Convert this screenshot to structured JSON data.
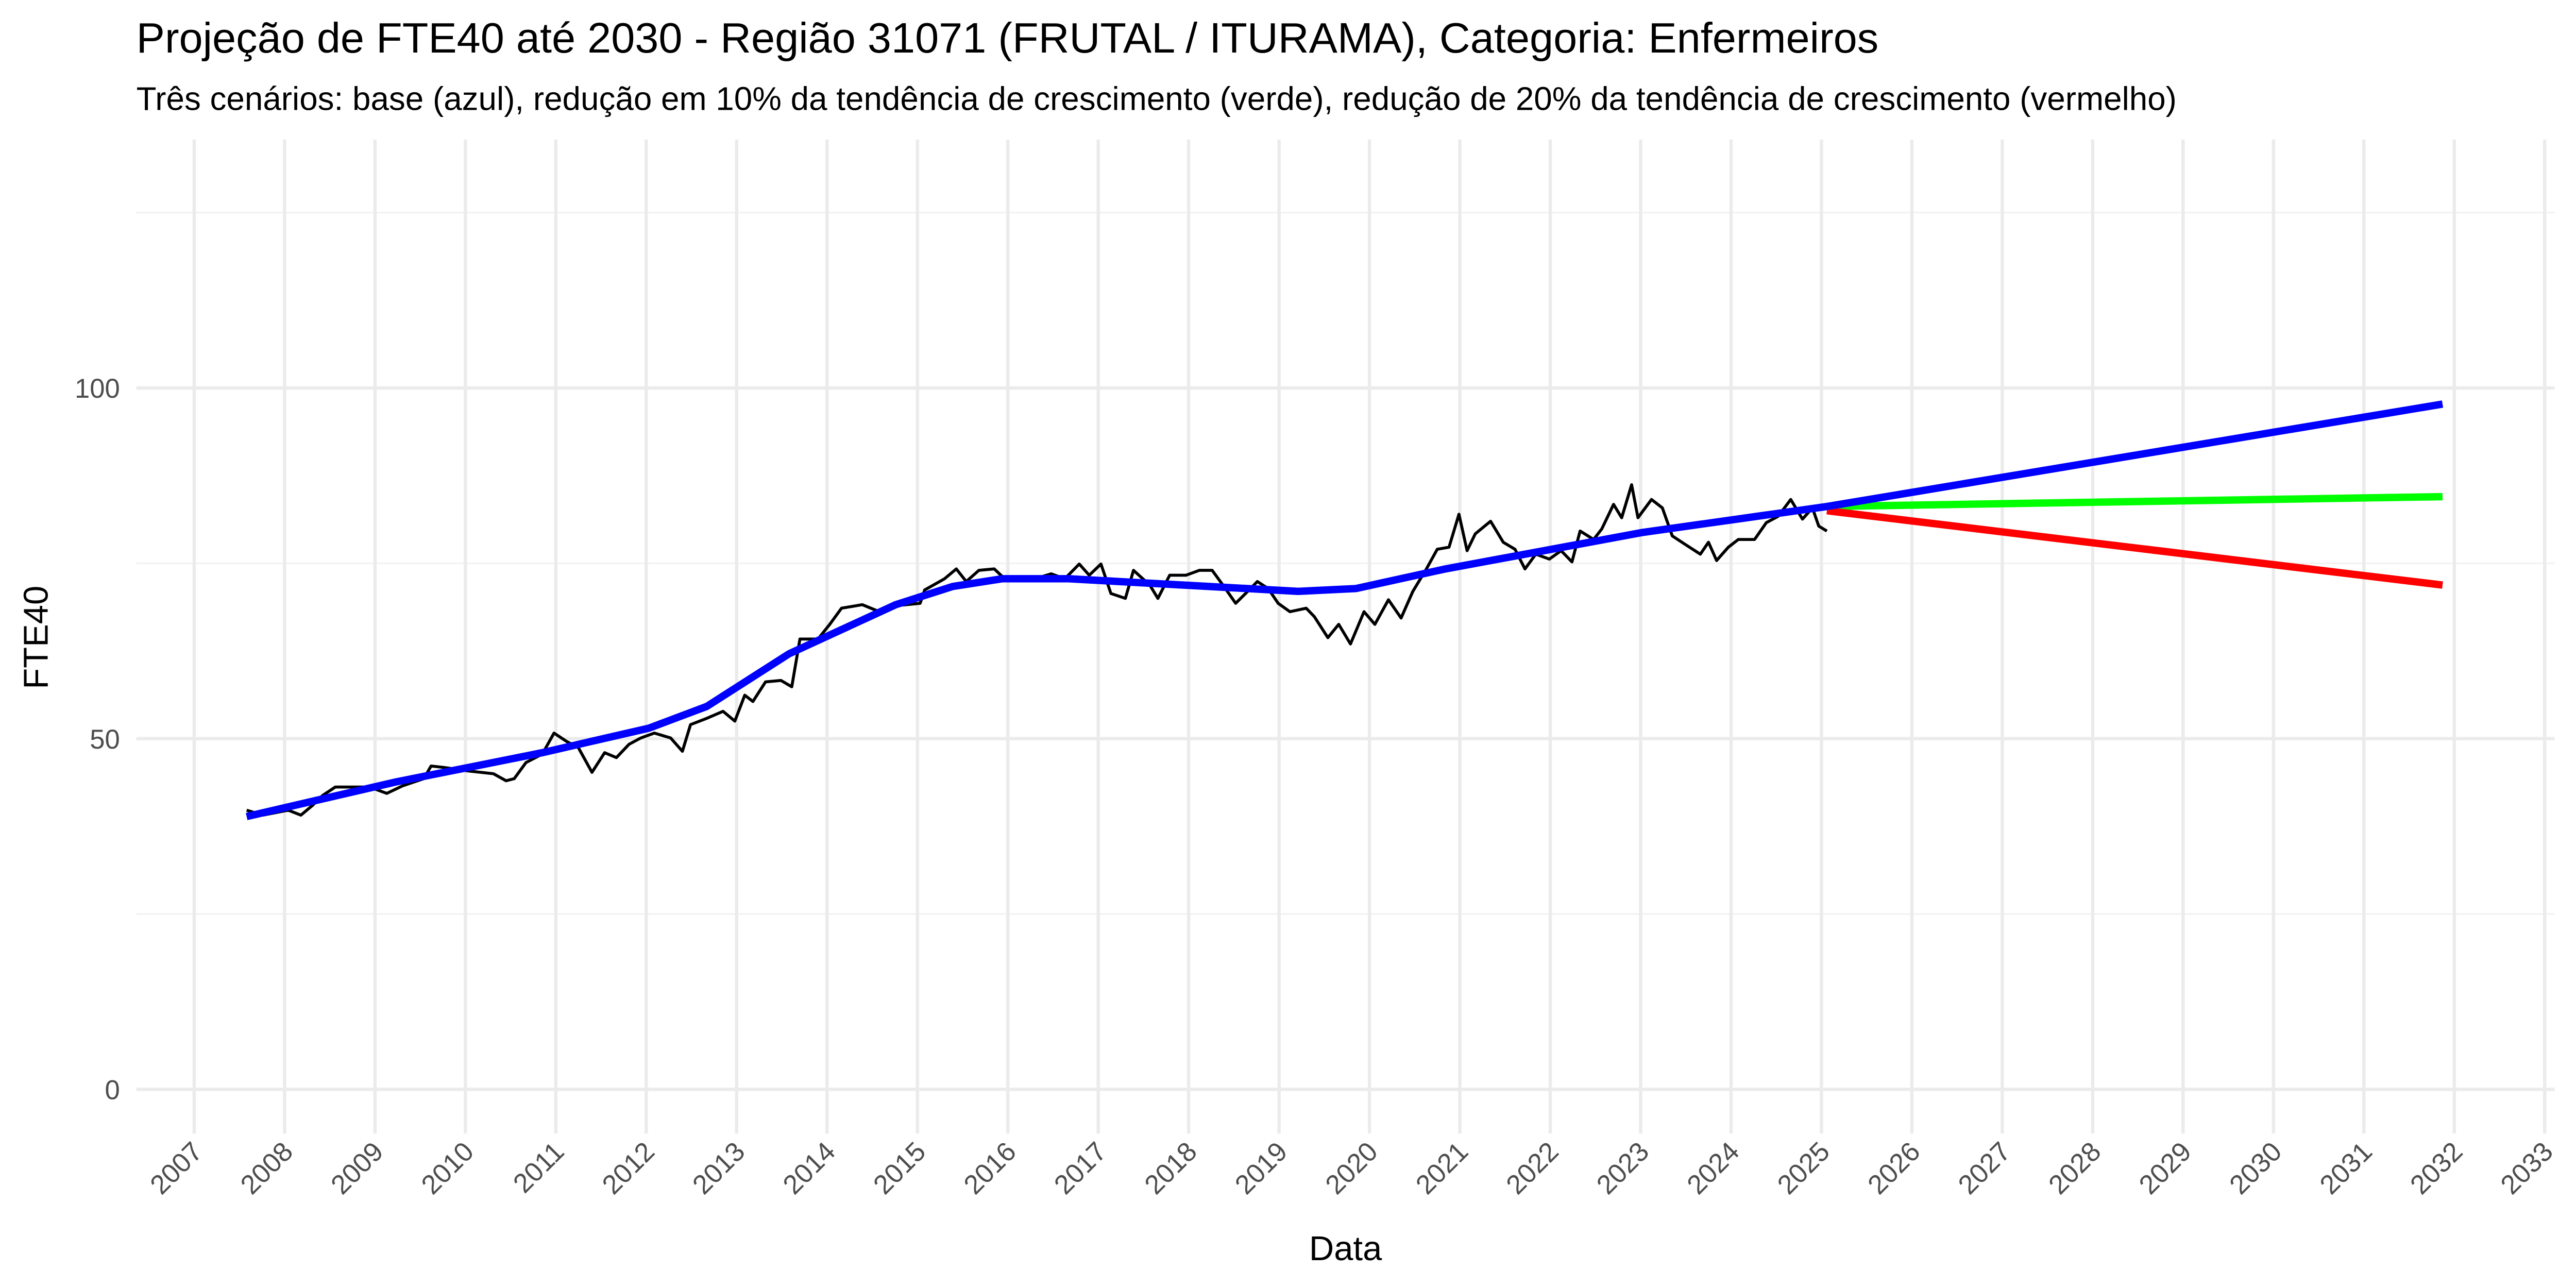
{
  "chart_data": {
    "type": "line",
    "title": "Projeção de FTE40 até 2030 - Região 31071 (FRUTAL / ITURAMA), Categoria: Enfermeiros",
    "subtitle": "Três cenários: base (azul), redução em 10% da tendência de crescimento (verde), redução de 20% da tendência de crescimento (vermelho)",
    "x_label": "Data",
    "y_label": "FTE40",
    "xlim": [
      2006.36,
      2033.11
    ],
    "xticks": [
      2007,
      2008,
      2009,
      2010,
      2011,
      2012,
      2013,
      2014,
      2015,
      2016,
      2017,
      2018,
      2019,
      2020,
      2021,
      2022,
      2023,
      2024,
      2025,
      2026,
      2027,
      2028,
      2029,
      2030,
      2031,
      2032,
      2033
    ],
    "ylim": [
      -6.3,
      135.4
    ],
    "yticks": [
      0,
      50,
      100
    ],
    "yminor_ticks": [
      25,
      75,
      125
    ],
    "grid": true,
    "series": [
      {
        "color": "#000000",
        "line_width": 1.8,
        "x": [
          2007.58,
          2007.76,
          2008.04,
          2008.18,
          2008.31,
          2008.42,
          2008.56,
          2008.94,
          2009.13,
          2009.31,
          2009.54,
          2009.62,
          2009.76,
          2010.03,
          2010.31,
          2010.45,
          2010.54,
          2010.67,
          2010.85,
          2010.98,
          2011.12,
          2011.25,
          2011.4,
          2011.54,
          2011.67,
          2011.81,
          2011.94,
          2012.09,
          2012.27,
          2012.4,
          2012.49,
          2012.67,
          2012.85,
          2012.98,
          2013.09,
          2013.18,
          2013.32,
          2013.49,
          2013.61,
          2013.7,
          2013.9,
          2014.03,
          2014.16,
          2014.39,
          2014.58,
          2014.72,
          2015.03,
          2015.08,
          2015.3,
          2015.43,
          2015.54,
          2015.68,
          2015.85,
          2015.94,
          2016.12,
          2016.3,
          2016.48,
          2016.63,
          2016.79,
          2016.9,
          2017.03,
          2017.14,
          2017.3,
          2017.39,
          2017.57,
          2017.66,
          2017.79,
          2017.97,
          2018.12,
          2018.26,
          2018.39,
          2018.52,
          2018.63,
          2018.76,
          2018.88,
          2018.99,
          2019.12,
          2019.3,
          2019.39,
          2019.54,
          2019.66,
          2019.79,
          2019.94,
          2020.06,
          2020.21,
          2020.35,
          2020.48,
          2020.63,
          2020.75,
          2020.88,
          2020.99,
          2021.08,
          2021.17,
          2021.34,
          2021.48,
          2021.61,
          2021.72,
          2021.84,
          2021.99,
          2022.12,
          2022.24,
          2022.33,
          2022.48,
          2022.57,
          2022.7,
          2022.79,
          2022.9,
          2022.97,
          2023.12,
          2023.24,
          2023.35,
          2023.48,
          2023.66,
          2023.75,
          2023.84,
          2023.97,
          2024.08,
          2024.26,
          2024.39,
          2024.52,
          2024.66,
          2024.79,
          2024.9,
          2024.97,
          2025.06
        ],
        "values": [
          39.8,
          39.1,
          39.8,
          39.1,
          40.5,
          41.9,
          43.1,
          43.1,
          42.2,
          43.3,
          44.3,
          46.1,
          45.9,
          45.4,
          45.0,
          44.0,
          44.3,
          46.6,
          47.8,
          50.8,
          49.6,
          48.7,
          45.2,
          48.0,
          47.3,
          49.2,
          50.1,
          50.8,
          50.1,
          48.2,
          52.0,
          52.9,
          53.9,
          52.5,
          56.2,
          55.3,
          58.1,
          58.3,
          57.4,
          64.2,
          64.2,
          66.3,
          68.6,
          69.1,
          68.1,
          68.9,
          69.3,
          71.2,
          72.8,
          74.2,
          72.4,
          74.0,
          74.2,
          73.1,
          72.8,
          72.8,
          73.5,
          72.8,
          74.9,
          73.3,
          74.9,
          70.7,
          70.0,
          74.0,
          71.9,
          70.0,
          73.3,
          73.3,
          74.0,
          74.0,
          71.7,
          69.3,
          70.7,
          72.4,
          71.4,
          69.3,
          68.1,
          68.6,
          67.4,
          64.4,
          66.3,
          63.5,
          68.1,
          66.3,
          69.8,
          67.2,
          71.0,
          74.2,
          77.0,
          77.3,
          82.0,
          76.8,
          79.2,
          81.0,
          78.0,
          77.0,
          74.2,
          76.3,
          75.6,
          76.8,
          75.2,
          79.6,
          78.4,
          79.9,
          83.4,
          81.5,
          86.2,
          81.5,
          84.1,
          82.9,
          78.9,
          77.8,
          76.3,
          78.0,
          75.4,
          77.3,
          78.4,
          78.4,
          80.8,
          81.7,
          84.1,
          81.3,
          82.9,
          80.3,
          79.6
        ]
      },
      {
        "color": "#00ff00",
        "line_width": 4.5,
        "x": [
          2025.06,
          2031.87
        ],
        "values": [
          83.1,
          84.5
        ]
      },
      {
        "color": "#ff0000",
        "line_width": 4.5,
        "x": [
          2025.06,
          2031.87
        ],
        "values": [
          82.5,
          71.9
        ]
      },
      {
        "color": "#0000ff",
        "line_width": 4.5,
        "x": [
          2007.58,
          2009.22,
          2010.85,
          2012.03,
          2012.67,
          2013.58,
          2014.76,
          2015.39,
          2015.94,
          2016.67,
          2017.94,
          2019.21,
          2019.85,
          2020.84,
          2023.02,
          2025.06,
          2031.87
        ],
        "values": [
          38.9,
          43.8,
          48.0,
          51.5,
          54.6,
          62.1,
          69.1,
          71.7,
          72.8,
          72.8,
          71.9,
          71.0,
          71.4,
          74.2,
          79.4,
          83.1,
          97.7
        ]
      }
    ]
  }
}
